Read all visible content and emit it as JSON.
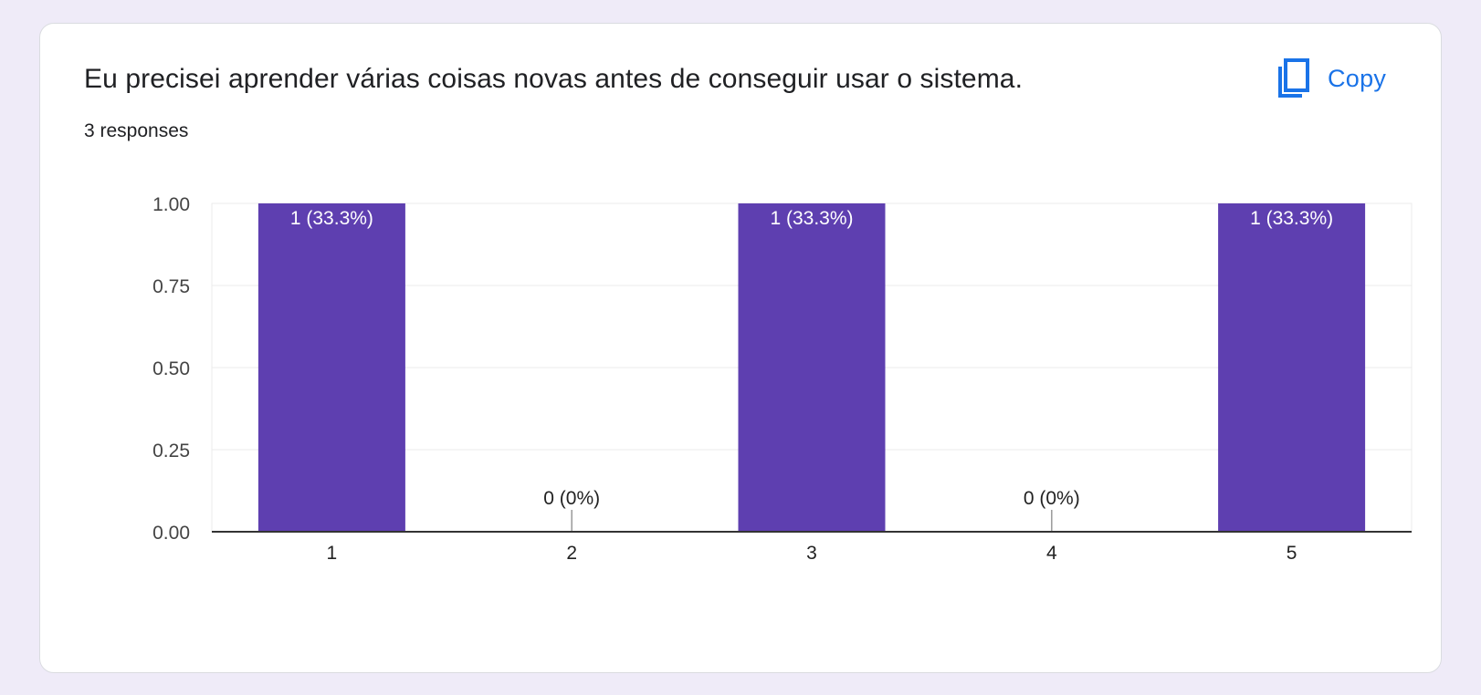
{
  "question": {
    "title": "Eu precisei aprender várias coisas novas antes de conseguir usar o sistema.",
    "responses": "3 responses"
  },
  "copy_button": {
    "label": "Copy",
    "icon": "copy-icon",
    "color": "#1a73e8"
  },
  "chart_data": {
    "type": "bar",
    "categories": [
      "1",
      "2",
      "3",
      "4",
      "5"
    ],
    "values": [
      1,
      0,
      1,
      0,
      1
    ],
    "data_labels": [
      "1 (33.3%)",
      "0 (0%)",
      "1 (33.3%)",
      "0 (0%)",
      "1 (33.3%)"
    ],
    "ylim": [
      0,
      1
    ],
    "yticks": [
      0,
      0.25,
      0.5,
      0.75,
      1
    ],
    "ytick_labels": [
      "0.00",
      "0.25",
      "0.50",
      "0.75",
      "1.00"
    ],
    "bar_color": "#5e3fb0",
    "grid": true,
    "title": "",
    "xlabel": "",
    "ylabel": ""
  }
}
